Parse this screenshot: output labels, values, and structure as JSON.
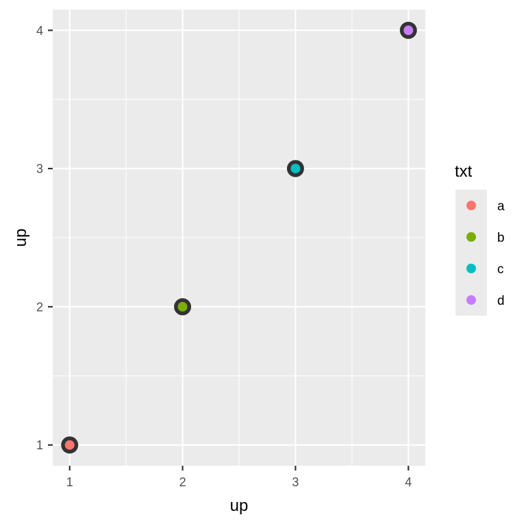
{
  "chart_data": {
    "type": "scatter",
    "xlabel": "up",
    "ylabel": "up",
    "xlim": [
      0.85,
      4.15
    ],
    "ylim": [
      0.85,
      4.15
    ],
    "x_ticks": [
      1,
      2,
      3,
      4
    ],
    "y_ticks": [
      1,
      2,
      3,
      4
    ],
    "x_tick_labels": [
      "1",
      "2",
      "3",
      "4"
    ],
    "y_tick_labels": [
      "1",
      "2",
      "3",
      "4"
    ],
    "grid": true,
    "legend": {
      "title": "txt",
      "placement": "right",
      "entries": [
        "a",
        "b",
        "c",
        "d"
      ]
    },
    "points": [
      {
        "x": 1,
        "y": 1,
        "label": "a",
        "color": "#F8766D"
      },
      {
        "x": 2,
        "y": 2,
        "label": "b",
        "color": "#7CAE00"
      },
      {
        "x": 3,
        "y": 3,
        "label": "c",
        "color": "#00BFC4"
      },
      {
        "x": 4,
        "y": 4,
        "label": "d",
        "color": "#C77CFF"
      }
    ],
    "outline_color": "#333333",
    "panel_color": "#EBEBEB",
    "grid_color": "#FFFFFF"
  }
}
